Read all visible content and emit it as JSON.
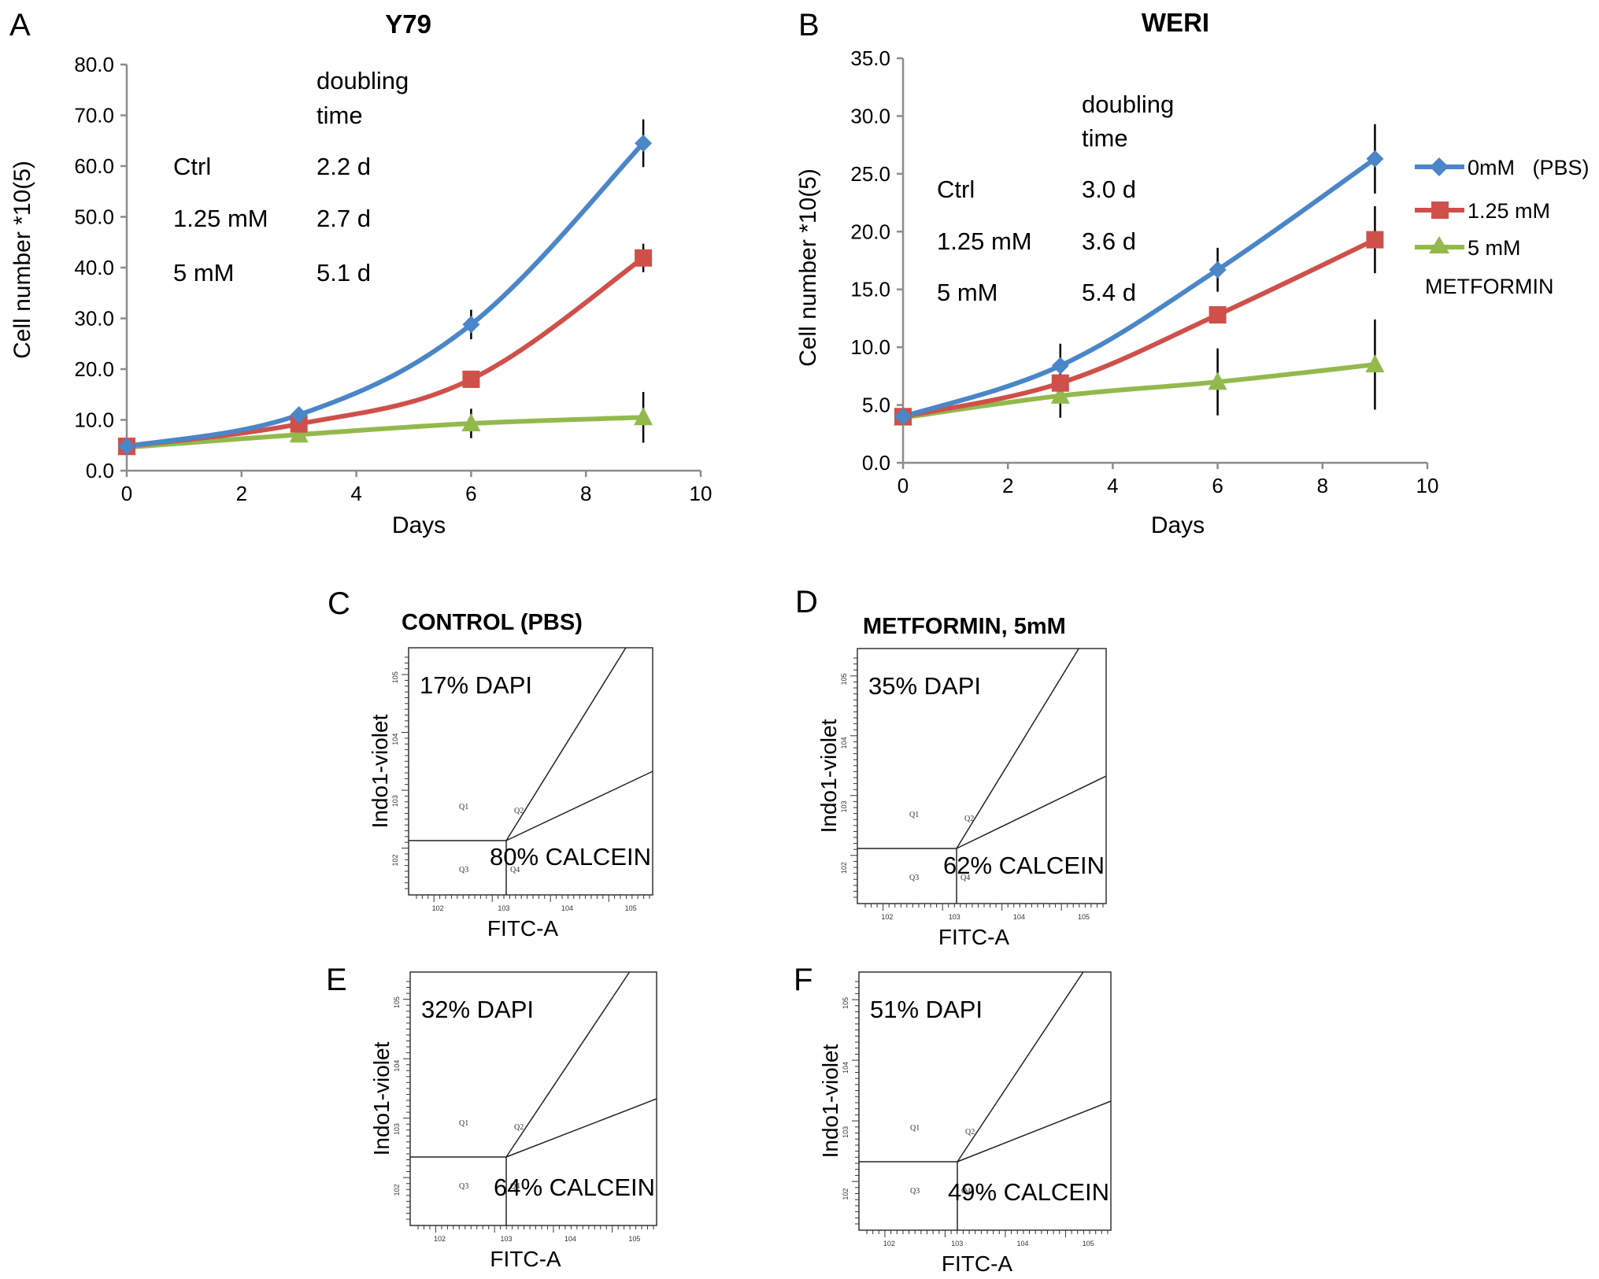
{
  "figure": {
    "panels": {
      "A": {
        "letter": "A",
        "title": "Y79"
      },
      "B": {
        "letter": "B",
        "title": "WERI"
      },
      "C": {
        "letter": "C",
        "title": "CONTROL (PBS)"
      },
      "D": {
        "letter": "D",
        "title": "METFORMIN, 5mM"
      },
      "E": {
        "letter": "E",
        "title": ""
      },
      "F": {
        "letter": "F",
        "title": ""
      }
    }
  },
  "chart_data": [
    {
      "id": "A",
      "type": "line",
      "title": "Y79",
      "xlabel": "Days",
      "ylabel": "Cell number  *10(5)",
      "xlim": [
        0,
        10
      ],
      "ylim": [
        0,
        80
      ],
      "xticks": [
        0,
        2,
        4,
        6,
        8,
        10
      ],
      "xtick_labels": [
        "0",
        "2",
        "4",
        "6",
        "8",
        "10"
      ],
      "yticks": [
        0,
        10,
        20,
        30,
        40,
        50,
        60,
        70,
        80
      ],
      "ytick_labels": [
        "0.0",
        "10.0",
        "20.0",
        "30.0",
        "40.0",
        "50.0",
        "60.0",
        "70.0",
        "80.0"
      ],
      "grid": false,
      "smooth": true,
      "x": [
        0,
        3,
        6,
        9
      ],
      "series": [
        {
          "name": "0mM (PBS)",
          "color": "#4a86c8",
          "marker": "diamond",
          "values": [
            4.8,
            11.0,
            28.8,
            64.5
          ],
          "errors": [
            0,
            0.5,
            2.9,
            4.7
          ]
        },
        {
          "name": "1.25 mM",
          "color": "#cf504a",
          "marker": "square",
          "values": [
            4.8,
            9.2,
            18.0,
            41.9
          ],
          "errors": [
            0,
            0.4,
            0.6,
            2.8
          ]
        },
        {
          "name": "5 mM",
          "color": "#93b94d",
          "marker": "triangle",
          "values": [
            4.6,
            7.1,
            9.3,
            10.5
          ],
          "errors": [
            0,
            0.4,
            2.9,
            5.0
          ]
        }
      ],
      "annotation": {
        "header": [
          "doubling",
          "time"
        ],
        "rows": [
          {
            "label": "Ctrl",
            "value": "2.2 d"
          },
          {
            "label": "1.25 mM",
            "value": "2.7 d"
          },
          {
            "label": "5 mM",
            "value": "5.1 d"
          }
        ]
      }
    },
    {
      "id": "B",
      "type": "line",
      "title": "WERI",
      "xlabel": "Days",
      "ylabel": "Cell number  *10(5)",
      "xlim": [
        0,
        10
      ],
      "ylim": [
        0,
        35
      ],
      "xticks": [
        0,
        2,
        4,
        6,
        8,
        10
      ],
      "xtick_labels": [
        "0",
        "2",
        "4",
        "6",
        "8",
        "10"
      ],
      "yticks": [
        0,
        5,
        10,
        15,
        20,
        25,
        30,
        35
      ],
      "ytick_labels": [
        "0.0",
        "5.0",
        "10.0",
        "15.0",
        "20.0",
        "25.0",
        "30.0",
        "35.0"
      ],
      "grid": false,
      "smooth": true,
      "x": [
        0,
        3,
        6,
        9
      ],
      "series": [
        {
          "name": "0mM (PBS)",
          "color": "#4a86c8",
          "marker": "diamond",
          "values": [
            4.0,
            8.4,
            16.7,
            26.3
          ],
          "errors": [
            0,
            1.9,
            1.9,
            3.0
          ]
        },
        {
          "name": "1.25 mM",
          "color": "#cf504a",
          "marker": "square",
          "values": [
            4.0,
            6.9,
            12.8,
            19.3
          ],
          "errors": [
            0,
            0,
            0,
            2.9
          ]
        },
        {
          "name": "5 mM",
          "color": "#93b94d",
          "marker": "triangle",
          "values": [
            3.9,
            5.8,
            7.0,
            8.5
          ],
          "errors": [
            0,
            1.9,
            2.9,
            3.9
          ]
        }
      ],
      "legend": {
        "position": "right",
        "entries": [
          "0mM   (PBS)",
          "1.25 mM",
          "5 mM"
        ],
        "footer": "METFORMIN"
      },
      "annotation": {
        "header": [
          "doubling",
          "time"
        ],
        "rows": [
          {
            "label": "Ctrl",
            "value": "3.0 d"
          },
          {
            "label": "1.25 mM",
            "value": "3.6 d"
          },
          {
            "label": "5 mM",
            "value": "5.4 d"
          }
        ]
      }
    },
    {
      "id": "C",
      "type": "scatter",
      "subtype": "flow-cytometry",
      "title": "CONTROL (PBS)",
      "xlabel": "FITC-A",
      "ylabel": "Indo1-violet",
      "x_scale": "log",
      "y_scale": "log",
      "xtick_labels": [
        "10^2",
        "10^3",
        "10^4",
        "10^5"
      ],
      "ytick_labels": [
        "10^2",
        "10^3",
        "10^4",
        "10^5"
      ],
      "quadrants": [
        "Q1",
        "Q2",
        "Q3",
        "Q4"
      ],
      "dapi_label": "17% DAPI",
      "calcein_label": "80% CALCEIN",
      "dapi_pct": 17,
      "calcein_pct": 80
    },
    {
      "id": "D",
      "type": "scatter",
      "subtype": "flow-cytometry",
      "title": "METFORMIN, 5mM",
      "xlabel": "FITC-A",
      "ylabel": "Indo1-violet",
      "x_scale": "log",
      "y_scale": "log",
      "xtick_labels": [
        "10^2",
        "10^3",
        "10^4",
        "10^5"
      ],
      "ytick_labels": [
        "10^2",
        "10^3",
        "10^4",
        "10^5"
      ],
      "quadrants": [
        "Q1",
        "Q2",
        "Q3",
        "Q4"
      ],
      "dapi_label": "35% DAPI",
      "calcein_label": "62% CALCEIN",
      "dapi_pct": 35,
      "calcein_pct": 62
    },
    {
      "id": "E",
      "type": "scatter",
      "subtype": "flow-cytometry",
      "title": "",
      "xlabel": "FITC-A",
      "ylabel": "Indo1-violet",
      "x_scale": "log",
      "y_scale": "log",
      "xtick_labels": [
        "10^2",
        "10^3",
        "10^4",
        "10^5"
      ],
      "ytick_labels": [
        "10^2",
        "10^3",
        "10^4",
        "10^5"
      ],
      "quadrants": [
        "Q1",
        "Q2",
        "Q3",
        "Q4"
      ],
      "dapi_label": "32% DAPI",
      "calcein_label": "64% CALCEIN",
      "dapi_pct": 32,
      "calcein_pct": 64
    },
    {
      "id": "F",
      "type": "scatter",
      "subtype": "flow-cytometry",
      "title": "",
      "xlabel": "FITC-A",
      "ylabel": "Indo1-violet",
      "x_scale": "log",
      "y_scale": "log",
      "xtick_labels": [
        "10^2",
        "10^3",
        "10^4",
        "10^5"
      ],
      "ytick_labels": [
        "10^2",
        "10^3",
        "10^4",
        "10^5"
      ],
      "quadrants": [
        "Q1",
        "Q2",
        "Q3",
        "Q4"
      ],
      "dapi_label": "51% DAPI",
      "calcein_label": "49% CALCEIN",
      "dapi_pct": 51,
      "calcein_pct": 49
    }
  ]
}
